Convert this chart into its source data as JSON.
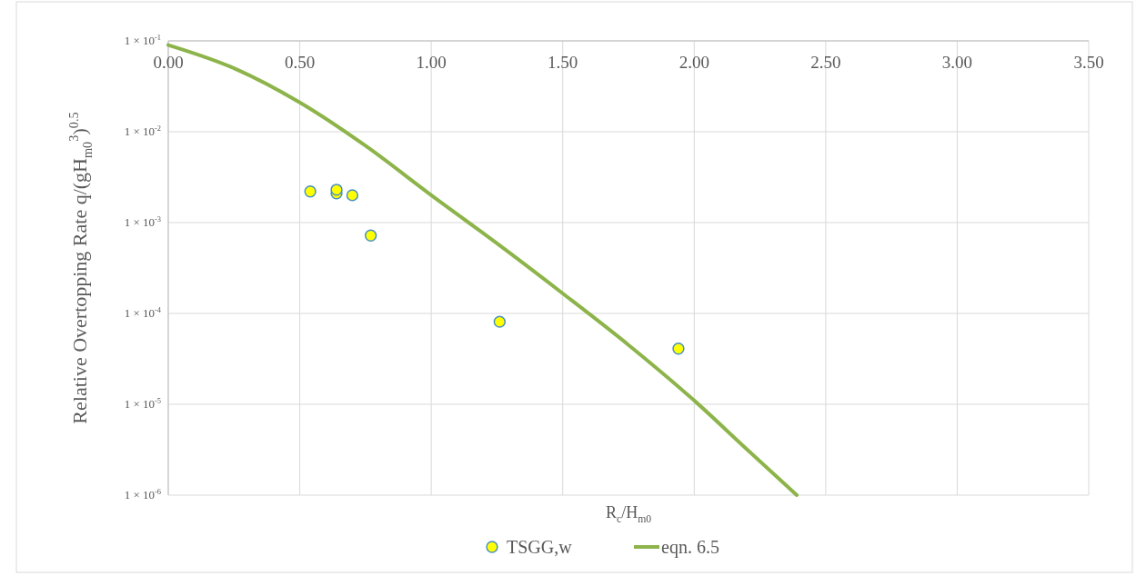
{
  "chart_data": {
    "type": "scatter",
    "xlabel": "R$_{c}$/H$_{m0}$",
    "ylabel": "Relative Overtopping Rate  q/(gH$_{m0}$$^{3}$)$^{0.5}$",
    "xlim": [
      0,
      3.5
    ],
    "xticks": [
      {
        "value": 0,
        "label": "0.00"
      },
      {
        "value": 0.5,
        "label": "0.50"
      },
      {
        "value": 1,
        "label": "1.00"
      },
      {
        "value": 1.5,
        "label": "1.50"
      },
      {
        "value": 2,
        "label": "2.00"
      },
      {
        "value": 2.5,
        "label": "2.50"
      },
      {
        "value": 3,
        "label": "3.00"
      },
      {
        "value": 3.5,
        "label": "3.50"
      }
    ],
    "ylim": [
      1e-06,
      0.1
    ],
    "yticks": [
      {
        "value": 0.1,
        "label": "1 × 10$^{-1}$"
      },
      {
        "value": 0.01,
        "label": "1 × 10$^{-2}$"
      },
      {
        "value": 0.001,
        "label": "1 × 10$^{-3}$"
      },
      {
        "value": 0.0001,
        "label": "1 × 10$^{-4}$"
      },
      {
        "value": 1e-05,
        "label": "1 × 10$^{-5}$"
      },
      {
        "value": 1e-06,
        "label": "1 × 10$^{-6}$"
      }
    ],
    "log": "y",
    "grid": true,
    "legend": "bottom",
    "series": [
      {
        "name": "TSGG,w",
        "type": "scatter",
        "marker": "circle",
        "color": "#ffff00",
        "x": [
          0.54,
          0.64,
          0.64,
          0.7,
          0.77,
          1.26,
          1.94
        ],
        "values": [
          0.0022,
          0.0021,
          0.0023,
          0.002,
          0.00072,
          8.1e-05,
          4.1e-05
        ]
      },
      {
        "name": "eqn. 6.5",
        "type": "line",
        "color": "#8db44a",
        "x": [
          0,
          0.25,
          0.5,
          0.75,
          1.0,
          1.25,
          1.5,
          1.75,
          2.0,
          2.2,
          2.39
        ],
        "values": [
          0.09,
          0.05,
          0.021,
          0.007,
          0.002,
          0.00059,
          0.000166,
          4.5e-05,
          1.1e-05,
          3.2e-06,
          1e-06
        ]
      }
    ]
  }
}
